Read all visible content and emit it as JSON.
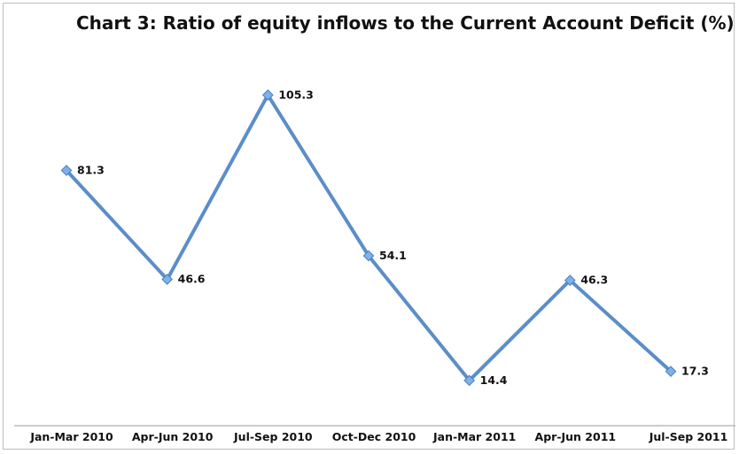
{
  "chart_data": {
    "type": "line",
    "title": "Chart 3: Ratio of equity inflows to the Current Account Deficit (%)",
    "categories": [
      "Jan-Mar 2010",
      "Apr-Jun 2010",
      "Jul-Sep 2010",
      "Oct-Dec 2010",
      "Jan-Mar 2011",
      "Apr-Jun 2011",
      "Jul-Sep 2011"
    ],
    "series": [
      {
        "values": [
          81.3,
          46.6,
          105.3,
          54.1,
          14.4,
          46.3,
          17.3
        ]
      }
    ],
    "data_labels": [
      "81.3",
      "46.6",
      "105.3",
      "54.1",
      "14.4",
      "46.3",
      "17.3"
    ],
    "ylim": [
      0,
      120
    ],
    "grid": false,
    "legend": "none",
    "colors": {
      "line": "#5b8ec8",
      "marker_fill": "#7fb0e6",
      "marker_stroke": "#4a7fbf"
    }
  }
}
